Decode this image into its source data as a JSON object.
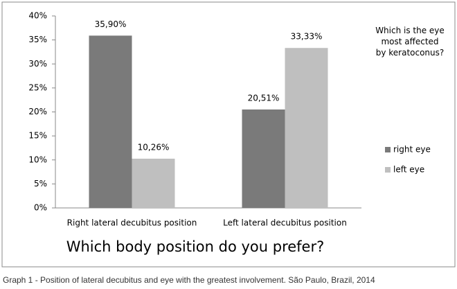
{
  "chart_data": {
    "type": "bar",
    "categories": [
      "Right lateral decubitus position",
      "Left lateral decubitus position"
    ],
    "series": [
      {
        "name": "right eye",
        "color": "#7a7a7a",
        "values": [
          35.9,
          20.51
        ],
        "value_labels": [
          "35,90%",
          "20,51%"
        ]
      },
      {
        "name": "left eye",
        "color": "#bfbfbf",
        "values": [
          10.26,
          33.33
        ],
        "value_labels": [
          "10,26%",
          "33,33%"
        ]
      }
    ],
    "ylim": [
      0,
      40
    ],
    "yticks": [
      {
        "value": 0,
        "label": "0%"
      },
      {
        "value": 5,
        "label": "5%"
      },
      {
        "value": 10,
        "label": "10%"
      },
      {
        "value": 15,
        "label": "15%"
      },
      {
        "value": 20,
        "label": "20%"
      },
      {
        "value": 25,
        "label": "25%"
      },
      {
        "value": 30,
        "label": "30%"
      },
      {
        "value": 35,
        "label": "35%"
      },
      {
        "value": 40,
        "label": "40%"
      }
    ],
    "grid": false,
    "legend_title": "Which is the eye most affected by keratoconus?",
    "x_label": "Which body position do you prefer?",
    "caption": "Graph 1 - Position of lateral decubitus and eye with the greatest involvement. São Paulo, Brazil, 2014"
  }
}
